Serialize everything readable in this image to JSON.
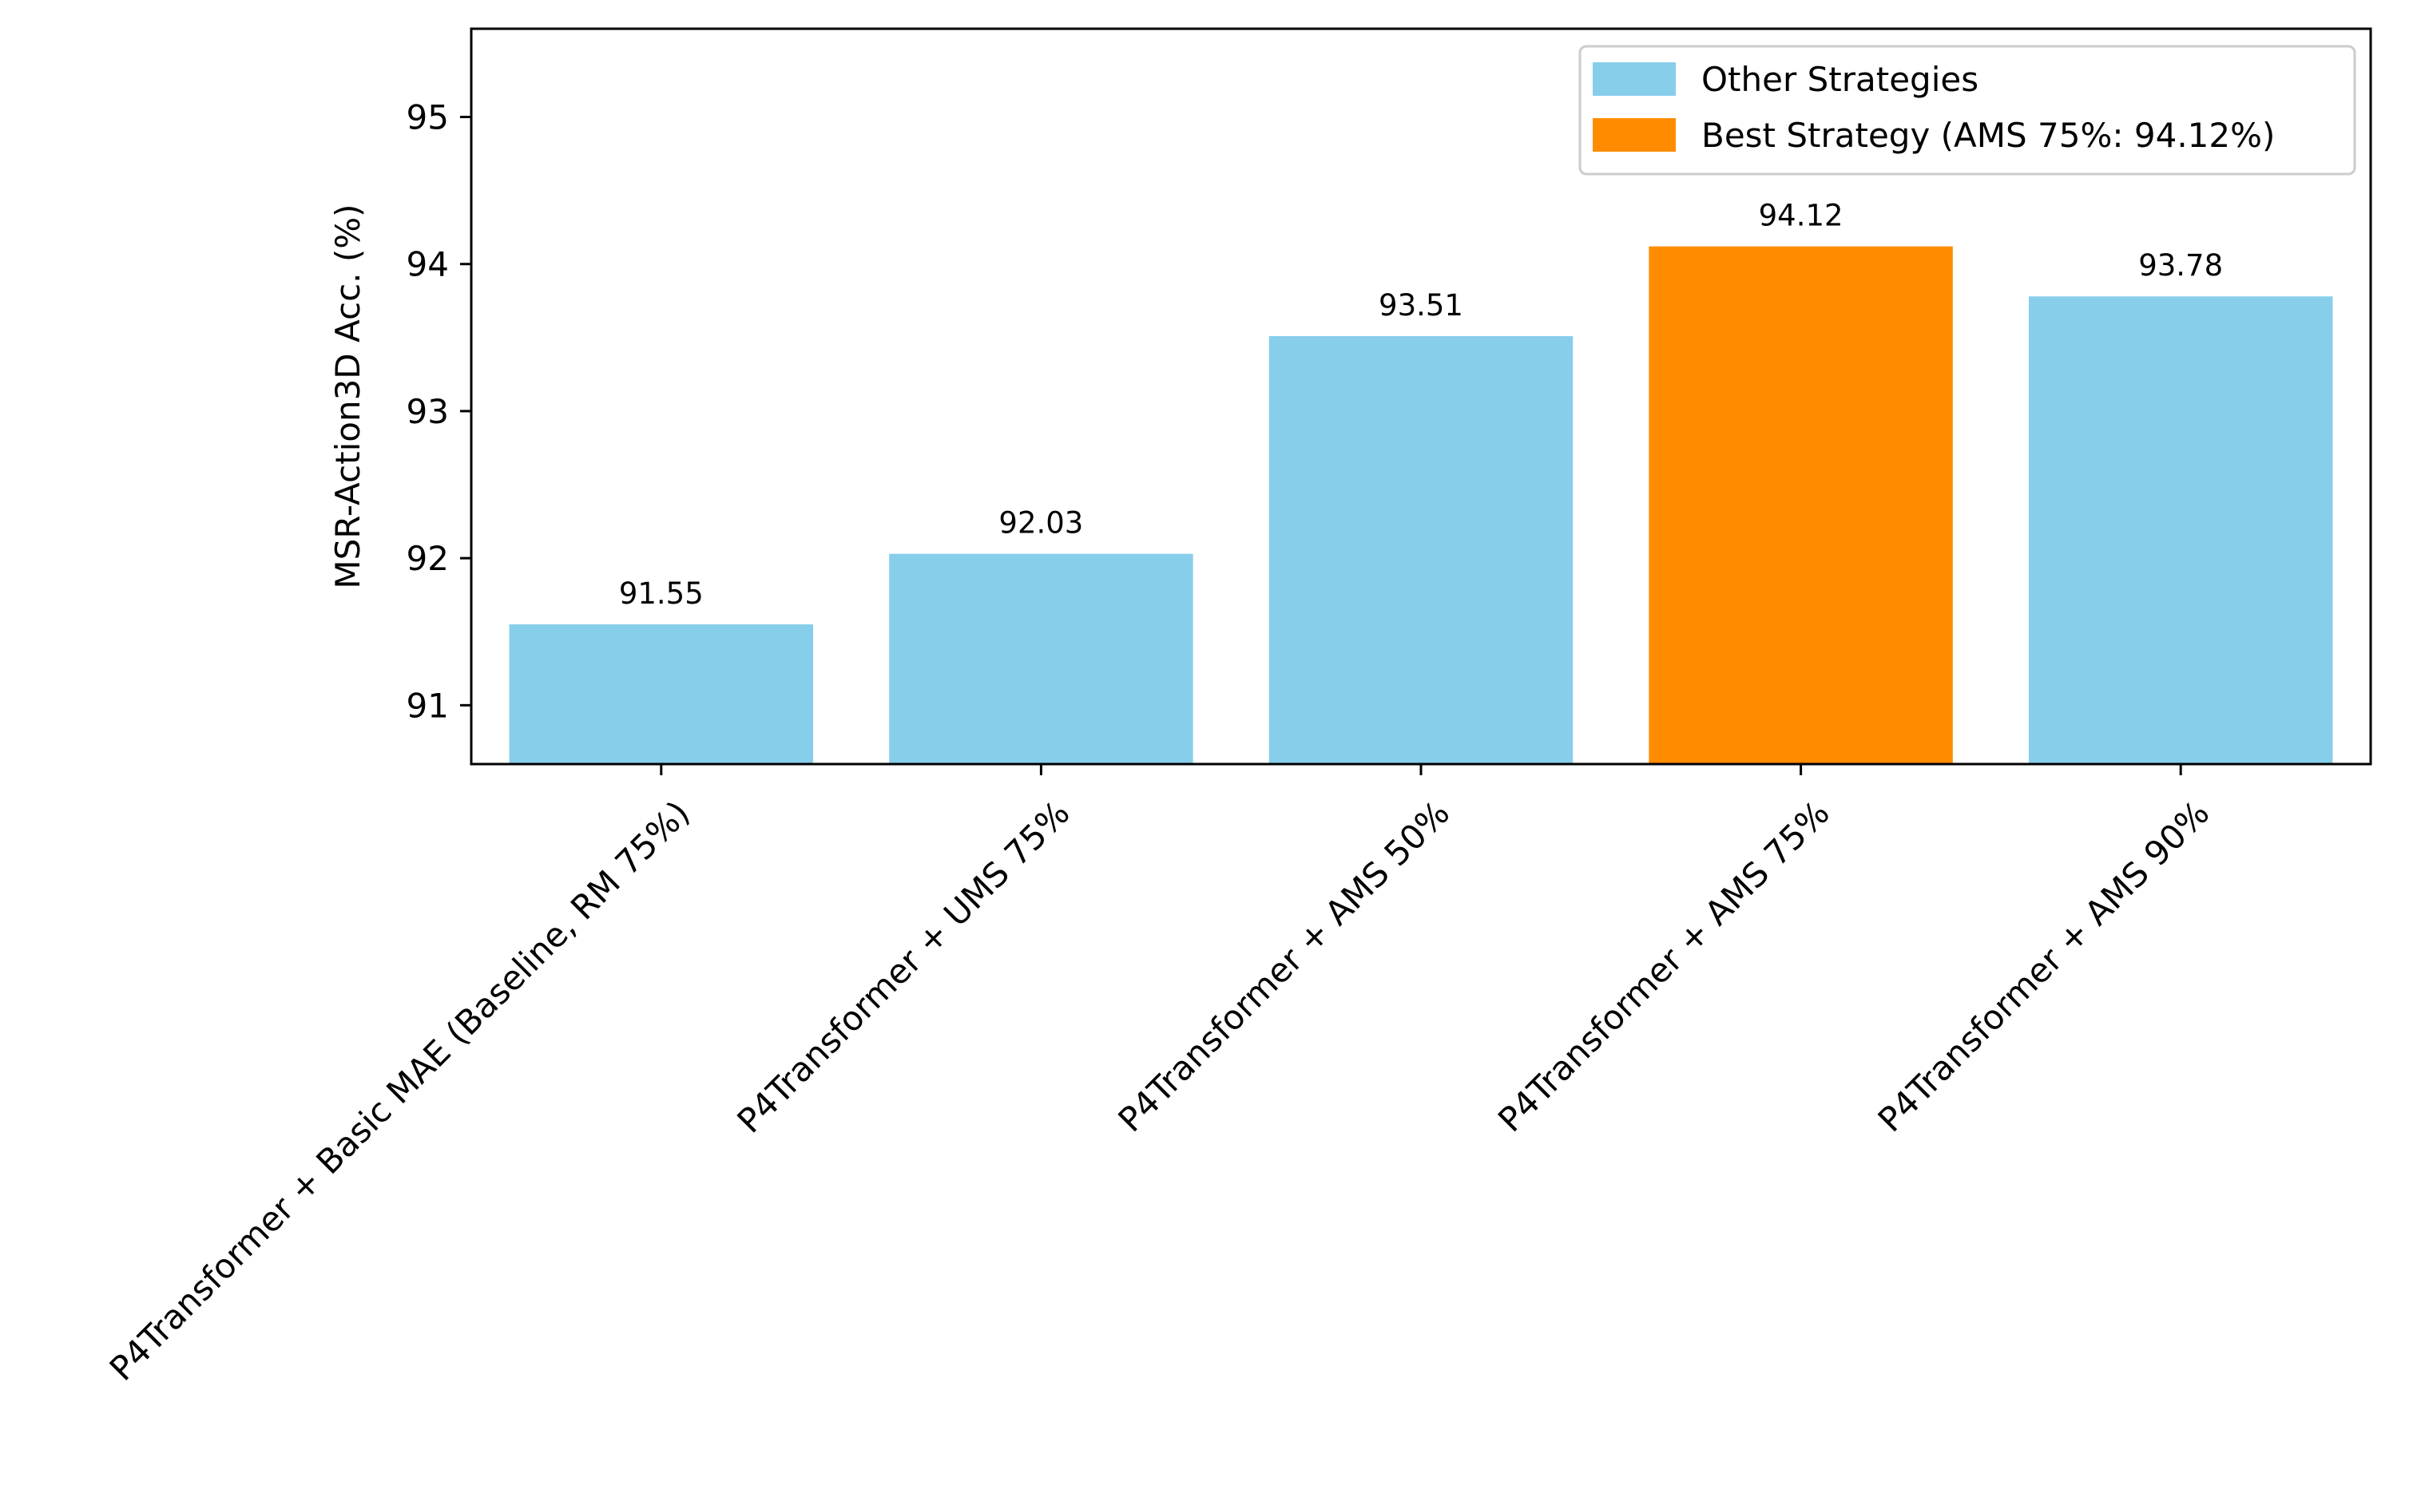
{
  "chart_data": {
    "type": "bar",
    "title": "",
    "xlabel": "",
    "ylabel": "MSR-Action3D Acc. (%)",
    "ylim": [
      90.6,
      95.6
    ],
    "yticks": [
      91,
      92,
      93,
      94,
      95
    ],
    "grid": false,
    "legend_position": "top-right",
    "categories": [
      "P4Transformer + Basic MAE (Baseline, RM 75%)",
      "P4Transformer + UMS 75%",
      "P4Transformer + AMS 50%",
      "P4Transformer + AMS 75%",
      "P4Transformer + AMS 90%"
    ],
    "values": [
      91.55,
      92.03,
      93.51,
      94.12,
      93.78
    ],
    "data_labels": [
      "91.55",
      "92.03",
      "93.51",
      "94.12",
      "93.78"
    ],
    "bar_groups": [
      "other",
      "other",
      "other",
      "best",
      "other"
    ],
    "legend": [
      {
        "key": "other",
        "label": "Other Strategies",
        "color": "#87CEEB"
      },
      {
        "key": "best",
        "label": "Best Strategy (AMS 75%: 94.12%)",
        "color": "#FF8C00"
      }
    ]
  }
}
